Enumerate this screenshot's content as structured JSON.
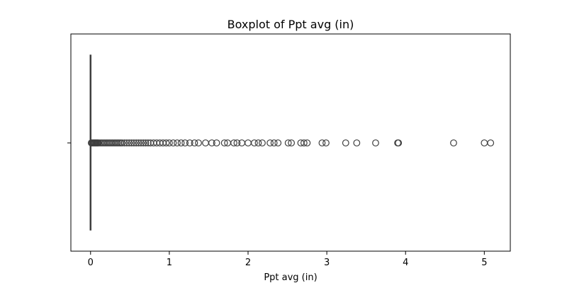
{
  "chart_data": {
    "type": "boxplot",
    "orientation": "horizontal",
    "title": "Boxplot of Ppt avg (in)",
    "xlabel": "Ppt avg (in)",
    "ylabel": "",
    "xlim": [
      -0.25,
      5.33
    ],
    "xticks": [
      0,
      1,
      2,
      3,
      4,
      5
    ],
    "xtick_labels": [
      "0",
      "1",
      "2",
      "3",
      "4",
      "5"
    ],
    "grid": false,
    "box": {
      "min": 0.0,
      "q1": 0.0,
      "median": 0.0,
      "q3": 0.0,
      "max": 0.0,
      "whisker_low": 0.0,
      "whisker_high": 0.0
    },
    "outliers": [
      0.01,
      0.02,
      0.03,
      0.04,
      0.05,
      0.06,
      0.07,
      0.08,
      0.09,
      0.1,
      0.12,
      0.14,
      0.16,
      0.18,
      0.2,
      0.22,
      0.24,
      0.26,
      0.28,
      0.3,
      0.32,
      0.34,
      0.36,
      0.38,
      0.4,
      0.43,
      0.46,
      0.49,
      0.52,
      0.55,
      0.58,
      0.61,
      0.64,
      0.67,
      0.7,
      0.73,
      0.76,
      0.8,
      0.84,
      0.88,
      0.92,
      0.96,
      1.0,
      1.05,
      1.1,
      1.15,
      1.2,
      1.26,
      1.32,
      1.37,
      1.46,
      1.54,
      1.6,
      1.7,
      1.74,
      1.82,
      1.86,
      1.92,
      2.0,
      2.08,
      2.13,
      2.18,
      2.28,
      2.33,
      2.38,
      2.51,
      2.55,
      2.67,
      2.71,
      2.75,
      2.94,
      2.99,
      3.24,
      3.38,
      3.62,
      3.9,
      3.91,
      4.61,
      5.0,
      5.08
    ]
  }
}
